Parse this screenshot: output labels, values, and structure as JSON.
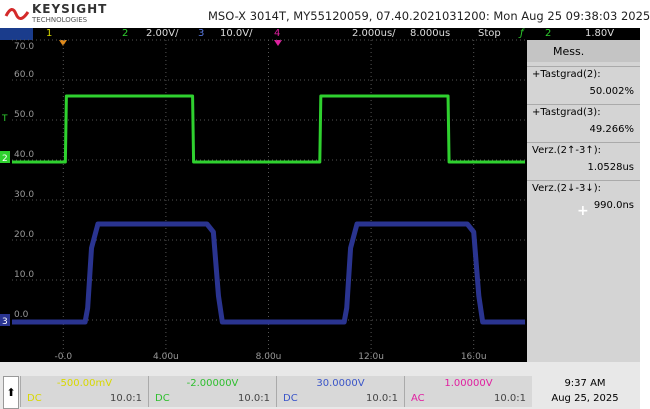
{
  "header": {
    "brand": "KEYSIGHT",
    "brand_sub": "TECHNOLOGIES",
    "title": "MSO-X 3014T, MY55120059, 07.40.2021031200: Mon Aug 25 09:38:03 2025"
  },
  "channel_bar": {
    "ch1": "1",
    "ch2": "2",
    "ch2_scale": "2.00V/",
    "ch3": "3",
    "ch3_scale": "10.0V/",
    "ch4": "4",
    "timebase": "2.000us/",
    "delay": "8.000us",
    "run_state": "Stop",
    "trigger_source": "2",
    "trigger_level": "1.80V"
  },
  "chart_data": {
    "type": "line",
    "xlim": [
      -2,
      18
    ],
    "ylim": [
      -10,
      70
    ],
    "xticks": [
      {
        "value": 0,
        "label": "-0.0"
      },
      {
        "value": 4,
        "label": "4.00u"
      },
      {
        "value": 8,
        "label": "8.00u"
      },
      {
        "value": 12,
        "label": "12.0u"
      },
      {
        "value": 16,
        "label": "16.0u"
      }
    ],
    "yticks": [
      {
        "value": 0,
        "label": "0.0"
      },
      {
        "value": 10,
        "label": "10.0"
      },
      {
        "value": 20,
        "label": "20.0"
      },
      {
        "value": 30,
        "label": "30.0"
      },
      {
        "value": 40,
        "label": "40.0"
      },
      {
        "value": 50,
        "label": "50.0"
      },
      {
        "value": 60,
        "label": "60.0"
      },
      {
        "value": 70,
        "label": "70.0"
      }
    ],
    "grid": true,
    "trigger_marker": "T",
    "series": [
      {
        "name": "2",
        "color": "#2fd12f",
        "x": [
          -2,
          0.08,
          0.12,
          5.04,
          5.08,
          10.0,
          10.04,
          15.0,
          15.04,
          18
        ],
        "values": [
          39.5,
          39.5,
          56,
          56,
          39.5,
          39.5,
          56,
          56,
          39.5,
          39.5
        ]
      },
      {
        "name": "3",
        "color": "#2a3490",
        "x": [
          -2,
          0.85,
          0.95,
          1.1,
          1.35,
          5.6,
          5.85,
          6.05,
          6.2,
          10.95,
          11.05,
          11.2,
          11.45,
          15.75,
          16.0,
          16.2,
          16.35,
          18
        ],
        "values": [
          -0.5,
          -0.5,
          3,
          18,
          24,
          24,
          22,
          6,
          -0.5,
          -0.5,
          3,
          18,
          24,
          24,
          22,
          6,
          -0.5,
          -0.5
        ]
      }
    ]
  },
  "measurements": {
    "title": "Mess.",
    "items": [
      {
        "label": "+Tastgrad(2):",
        "value": "50.002%"
      },
      {
        "label": "+Tastgrad(3):",
        "value": "49.266%"
      },
      {
        "label": "Verz.(2↑-3↑):",
        "value": "1.0528us"
      },
      {
        "label": "Verz.(2↓-3↓):",
        "value": "990.0ns"
      }
    ],
    "add": "+"
  },
  "channels": [
    {
      "offset": "-500.00mV",
      "coupling": "DC",
      "probe": "10.0:1",
      "color": "#d8d800"
    },
    {
      "offset": "-2.00000V",
      "coupling": "DC",
      "probe": "10.0:1",
      "color": "#2fbf2f"
    },
    {
      "offset": "30.0000V",
      "coupling": "DC",
      "probe": "10.0:1",
      "color": "#3a55c8"
    },
    {
      "offset": "1.00000V",
      "coupling": "AC",
      "probe": "10.0:1",
      "color": "#e020a0"
    }
  ],
  "clock": {
    "time": "9:37 AM",
    "date": "Aug 25, 2025"
  }
}
